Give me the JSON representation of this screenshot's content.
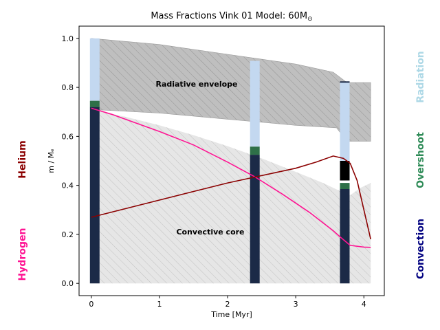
{
  "chart_data": {
    "type": "area",
    "title": "Mass Fractions Vink 01 Model: 60M",
    "title_symbol": "⊙",
    "xlabel": "Time [Myr]",
    "ylabel": "m / Mₑ",
    "xlim": [
      -0.18,
      4.3
    ],
    "ylim": [
      -0.05,
      1.05
    ],
    "xticks": [
      0,
      1,
      2,
      3,
      4
    ],
    "yticks": [
      0.0,
      0.2,
      0.4,
      0.6,
      0.8,
      1.0
    ],
    "xtick_labels": [
      "0",
      "1",
      "2",
      "3",
      "4"
    ],
    "ytick_labels": [
      "0.0",
      "0.2",
      "0.4",
      "0.6",
      "0.8",
      "1.0"
    ],
    "regions": {
      "envelope_label": "Radiative envelope",
      "core_label": "Convective core",
      "envelope_upper": [
        [
          0.0,
          1.0
        ],
        [
          1.0,
          0.975
        ],
        [
          2.0,
          0.935
        ],
        [
          3.0,
          0.895
        ],
        [
          3.55,
          0.862
        ],
        [
          3.75,
          0.82
        ],
        [
          4.1,
          0.82
        ]
      ],
      "envelope_lower": [
        [
          0.0,
          0.71
        ],
        [
          1.0,
          0.695
        ],
        [
          2.0,
          0.67
        ],
        [
          3.0,
          0.645
        ],
        [
          3.6,
          0.635
        ],
        [
          3.75,
          0.58
        ],
        [
          4.1,
          0.58
        ]
      ],
      "core_upper": [
        [
          0.0,
          0.71
        ],
        [
          0.5,
          0.68
        ],
        [
          1.0,
          0.645
        ],
        [
          1.5,
          0.605
        ],
        [
          2.0,
          0.56
        ],
        [
          2.5,
          0.51
        ],
        [
          3.0,
          0.455
        ],
        [
          3.4,
          0.41
        ],
        [
          3.7,
          0.37
        ],
        [
          3.8,
          0.36
        ],
        [
          3.95,
          0.39
        ],
        [
          4.1,
          0.41
        ]
      ],
      "core_lower": [
        [
          0.0,
          0.0
        ],
        [
          4.1,
          0.0
        ]
      ]
    },
    "columns": [
      {
        "x": 0.05,
        "convection": [
          0.0,
          0.72
        ],
        "overshoot": [
          0.72,
          0.745
        ],
        "radiation": [
          0.745,
          1.0
        ]
      },
      {
        "x": 2.4,
        "convection": [
          0.0,
          0.525
        ],
        "overshoot": [
          0.525,
          0.558
        ],
        "radiation": [
          0.558,
          0.908
        ]
      },
      {
        "x": 3.72,
        "convection": [
          0.0,
          0.385
        ],
        "overshoot": [
          0.385,
          0.41
        ],
        "radiation": [
          0.5,
          0.82
        ],
        "black": [
          0.42,
          0.5
        ],
        "top_line": 0.822
      }
    ],
    "series": [
      {
        "name": "Hydrogen",
        "color": "#ff1493",
        "points": [
          [
            0.0,
            0.715
          ],
          [
            0.3,
            0.69
          ],
          [
            0.6,
            0.66
          ],
          [
            1.0,
            0.62
          ],
          [
            1.5,
            0.565
          ],
          [
            2.0,
            0.495
          ],
          [
            2.4,
            0.435
          ],
          [
            2.8,
            0.365
          ],
          [
            3.2,
            0.29
          ],
          [
            3.55,
            0.215
          ],
          [
            3.65,
            0.19
          ],
          [
            3.8,
            0.155
          ],
          [
            4.0,
            0.148
          ],
          [
            4.1,
            0.147
          ]
        ]
      },
      {
        "name": "Helium",
        "color": "#8b0000",
        "points": [
          [
            0.0,
            0.27
          ],
          [
            0.5,
            0.305
          ],
          [
            1.0,
            0.34
          ],
          [
            1.5,
            0.375
          ],
          [
            2.0,
            0.41
          ],
          [
            2.5,
            0.44
          ],
          [
            3.0,
            0.47
          ],
          [
            3.3,
            0.495
          ],
          [
            3.55,
            0.52
          ],
          [
            3.7,
            0.51
          ],
          [
            3.8,
            0.49
          ],
          [
            3.9,
            0.42
          ],
          [
            4.0,
            0.3
          ],
          [
            4.1,
            0.18
          ]
        ]
      }
    ],
    "side_labels": {
      "left": [
        {
          "text": "Helium",
          "color": "#8b0000"
        },
        {
          "text": "Hydrogen",
          "color": "#ff1493"
        }
      ],
      "right": [
        {
          "text": "Radiation",
          "color": "#add8e6"
        },
        {
          "text": "Overshoot",
          "color": "#2e8b57"
        },
        {
          "text": "Convection",
          "color": "#000080"
        }
      ]
    },
    "colors": {
      "envelope_fill": "#bfbfbf",
      "core_fill": "#e6e6e6",
      "convection": "#1b2a47",
      "overshoot": "#2e7048",
      "radiation": "#c3d8f0",
      "black": "#000000"
    }
  }
}
